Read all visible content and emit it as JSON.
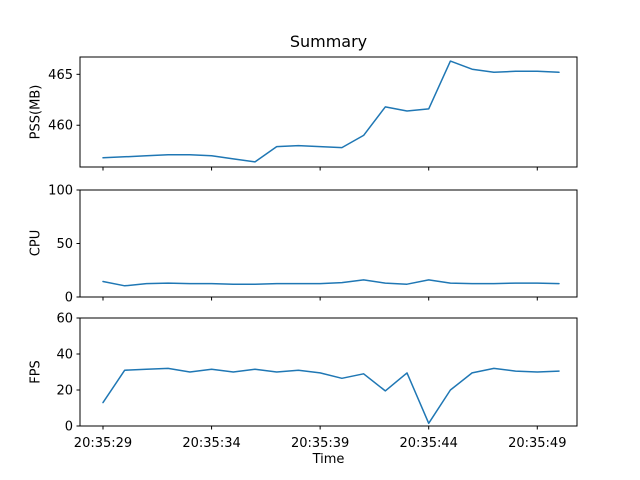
{
  "chart_data": {
    "type": "line",
    "title": "Summary",
    "xlabel": "Time",
    "line_color": "#1f77b4",
    "axis_color": "#000000",
    "legend": "none",
    "grid": false,
    "x": [
      "20:35:29",
      "20:35:30",
      "20:35:31",
      "20:35:32",
      "20:35:33",
      "20:35:34",
      "20:35:35",
      "20:35:36",
      "20:35:37",
      "20:35:38",
      "20:35:39",
      "20:35:40",
      "20:35:41",
      "20:35:42",
      "20:35:43",
      "20:35:44",
      "20:35:45",
      "20:35:46",
      "20:35:47",
      "20:35:48",
      "20:35:49",
      "20:35:50"
    ],
    "x_tick_labels": [
      "20:35:29",
      "20:35:34",
      "20:35:39",
      "20:35:44",
      "20:35:49"
    ],
    "subplots": [
      {
        "name": "pss",
        "ylabel": "PSS(MB)",
        "yticks": [
          460,
          465
        ],
        "ylim": [
          455.9,
          466.7
        ],
        "values": [
          456.8,
          456.9,
          457.0,
          457.1,
          457.1,
          457.0,
          456.7,
          456.4,
          457.9,
          458.0,
          457.9,
          457.8,
          459.0,
          461.8,
          461.4,
          461.6,
          466.3,
          465.5,
          465.2,
          465.3,
          465.3,
          465.2
        ]
      },
      {
        "name": "cpu",
        "ylabel": "CPU",
        "yticks": [
          0,
          50,
          100
        ],
        "ylim": [
          0,
          100
        ],
        "values": [
          14.5,
          10.5,
          12.5,
          13,
          12.5,
          12.5,
          12,
          12,
          12.5,
          12.5,
          12.5,
          13.5,
          16,
          13,
          12,
          16,
          13,
          12.5,
          12.5,
          13,
          13,
          12.5
        ]
      },
      {
        "name": "fps",
        "ylabel": "FPS",
        "yticks": [
          0,
          20,
          40,
          60
        ],
        "ylim": [
          0,
          60
        ],
        "values": [
          13,
          31,
          31.5,
          32,
          30,
          31.5,
          30,
          31.5,
          30,
          31,
          29.5,
          26.5,
          29,
          19.5,
          29.5,
          1.5,
          20,
          29.5,
          32,
          30.5,
          30,
          30.5
        ]
      }
    ]
  }
}
